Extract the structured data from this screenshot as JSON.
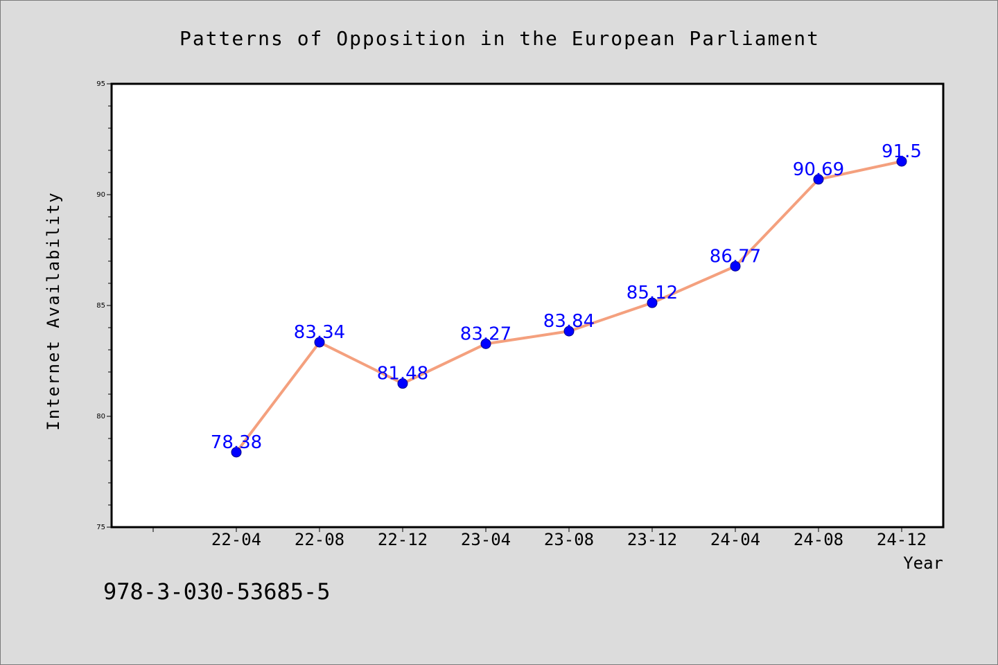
{
  "chart_data": {
    "type": "line",
    "title": "Patterns of Opposition in the European Parliament",
    "xlabel": "Year",
    "ylabel": "Internet Availability",
    "categories": [
      "22-04",
      "22-08",
      "22-12",
      "23-04",
      "23-08",
      "23-12",
      "24-04",
      "24-08",
      "24-12"
    ],
    "series": [
      {
        "values": [
          78.38,
          83.34,
          81.48,
          83.27,
          83.84,
          85.12,
          86.77,
          90.69,
          91.5
        ],
        "labels": [
          "78.38",
          "83.34",
          "81.48",
          "83.27",
          "83.84",
          "85.12",
          "86.77",
          "90.69",
          "91.5"
        ],
        "line_color": "#f4a07e",
        "marker_color": "#0000ff",
        "marker_edge_color": "#00008b",
        "label_color": "#0000ff"
      }
    ],
    "ylim": [
      75,
      95
    ],
    "yticks": [
      75,
      80,
      85,
      90,
      95
    ],
    "ytick_labels": [
      "75",
      "80",
      "85",
      "90",
      "95"
    ],
    "y_minor_step": 1,
    "x_extra_leading_slot": true,
    "grid": false,
    "legend": "none",
    "plot_background": "#ffffff",
    "figure_background": "#dcdcdc",
    "annotation": "978-3-030-53685-5"
  }
}
